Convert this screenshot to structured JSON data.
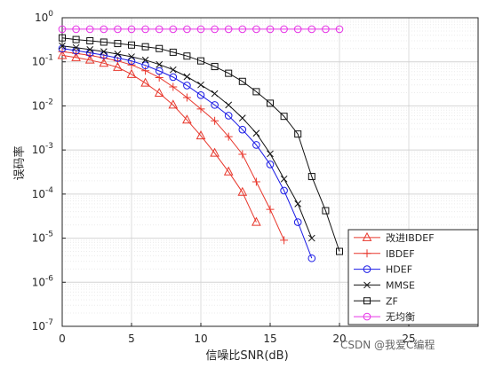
{
  "chart_data": {
    "type": "line",
    "xlabel": "信噪比SNR(dB)",
    "ylabel": "误码率",
    "xlim": [
      0,
      30
    ],
    "ylim_exponents": [
      -7,
      0
    ],
    "yscale": "log",
    "grid": true,
    "legend_position": "bottom-right",
    "x_ticks": [
      "0",
      "5",
      "10",
      "15",
      "20",
      "25"
    ],
    "y_ticks": [
      {
        "base": "10",
        "exp": "0"
      },
      {
        "base": "10",
        "exp": "-1"
      },
      {
        "base": "10",
        "exp": "-2"
      },
      {
        "base": "10",
        "exp": "-3"
      },
      {
        "base": "10",
        "exp": "-4"
      },
      {
        "base": "10",
        "exp": "-5"
      },
      {
        "base": "10",
        "exp": "-6"
      },
      {
        "base": "10",
        "exp": "-7"
      }
    ],
    "series": [
      {
        "name": "改进IBDEF",
        "color": "#e8372c",
        "marker": "triangle",
        "x": [
          0,
          1,
          2,
          3,
          4,
          5,
          6,
          7,
          8,
          9,
          10,
          11,
          12,
          13,
          14
        ],
        "y": [
          0.14,
          0.125,
          0.11,
          0.093,
          0.075,
          0.052,
          0.033,
          0.0195,
          0.0105,
          0.0048,
          0.0021,
          0.00085,
          0.00032,
          0.00011,
          2.3e-05
        ]
      },
      {
        "name": "IBDEF",
        "color": "#e8372c",
        "marker": "plus",
        "x": [
          0,
          1,
          2,
          3,
          4,
          5,
          6,
          7,
          8,
          9,
          10,
          11,
          12,
          13,
          14,
          15,
          16
        ],
        "y": [
          0.17,
          0.155,
          0.14,
          0.122,
          0.105,
          0.085,
          0.063,
          0.044,
          0.027,
          0.0155,
          0.0085,
          0.0046,
          0.002,
          0.0008,
          0.00019,
          4.5e-05,
          9e-06
        ]
      },
      {
        "name": "HDEF",
        "color": "#1a1ae6",
        "marker": "circle",
        "x": [
          0,
          1,
          2,
          3,
          4,
          5,
          6,
          7,
          8,
          9,
          10,
          11,
          12,
          13,
          14,
          15,
          16,
          17,
          18
        ],
        "y": [
          0.2,
          0.18,
          0.16,
          0.142,
          0.122,
          0.105,
          0.083,
          0.062,
          0.045,
          0.029,
          0.0175,
          0.0105,
          0.006,
          0.0029,
          0.0013,
          0.00047,
          0.00012,
          2.3e-05,
          3.5e-06
        ]
      },
      {
        "name": "MMSE",
        "color": "#111111",
        "marker": "x",
        "x": [
          0,
          1,
          2,
          3,
          4,
          5,
          6,
          7,
          8,
          9,
          10,
          11,
          12,
          13,
          14,
          15,
          16,
          17,
          18
        ],
        "y": [
          0.23,
          0.21,
          0.19,
          0.17,
          0.15,
          0.13,
          0.11,
          0.087,
          0.066,
          0.046,
          0.03,
          0.019,
          0.0105,
          0.0053,
          0.0024,
          0.00082,
          0.00022,
          6e-05,
          1e-05
        ]
      },
      {
        "name": "ZF",
        "color": "#111111",
        "marker": "square",
        "x": [
          0,
          1,
          2,
          3,
          4,
          5,
          6,
          7,
          8,
          9,
          10,
          11,
          12,
          13,
          14,
          15,
          16,
          17,
          18,
          19,
          20
        ],
        "y": [
          0.35,
          0.32,
          0.3,
          0.28,
          0.26,
          0.24,
          0.22,
          0.2,
          0.165,
          0.135,
          0.105,
          0.078,
          0.055,
          0.036,
          0.021,
          0.0115,
          0.0058,
          0.0023,
          0.00025,
          4.2e-05,
          5e-06
        ]
      },
      {
        "name": "无均衡",
        "color": "#e635e6",
        "marker": "circle",
        "x": [
          0,
          1,
          2,
          3,
          4,
          5,
          6,
          7,
          8,
          9,
          10,
          11,
          12,
          13,
          14,
          15,
          16,
          17,
          18,
          19,
          20
        ],
        "y": [
          0.55,
          0.55,
          0.55,
          0.55,
          0.55,
          0.55,
          0.55,
          0.55,
          0.55,
          0.55,
          0.55,
          0.55,
          0.55,
          0.55,
          0.55,
          0.55,
          0.55,
          0.55,
          0.55,
          0.55,
          0.55
        ]
      }
    ]
  },
  "watermark": "CSDN @我爱C编程"
}
